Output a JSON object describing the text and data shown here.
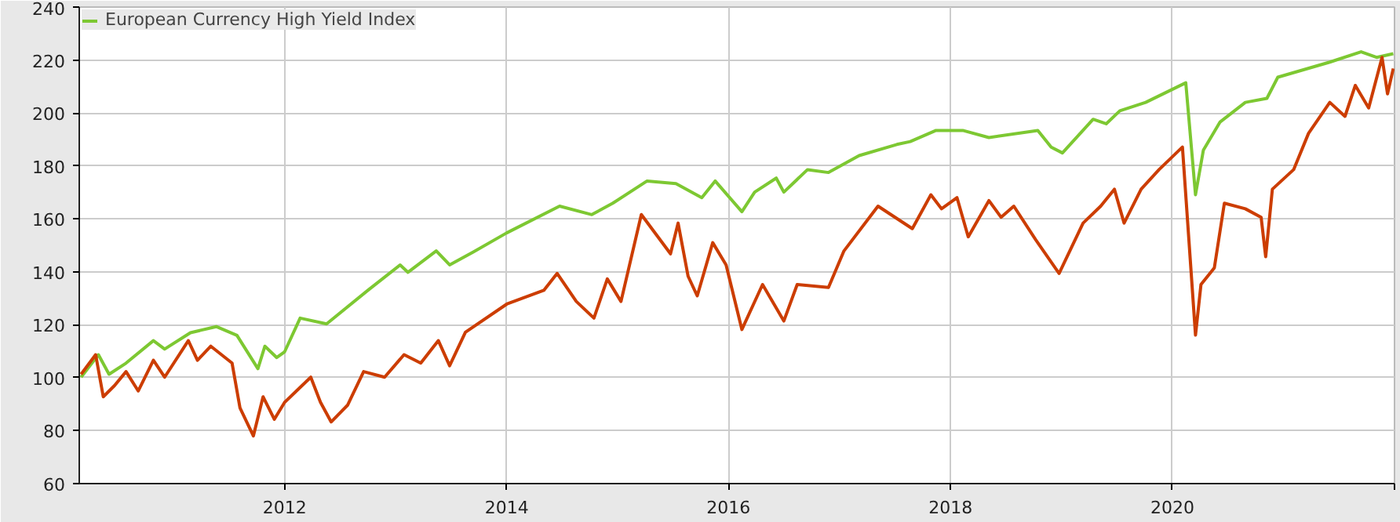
{
  "chart_data": {
    "type": "line",
    "xlim": [
      "2010-02-24",
      "2022-01-01"
    ],
    "xticks": [
      "2012",
      "2014",
      "2016",
      "2018",
      "2020",
      {
        "value": "2022",
        "label": null
      }
    ],
    "ylim": [
      60,
      240
    ],
    "yticks": [
      60,
      80,
      100,
      120,
      140,
      160,
      180,
      200,
      220,
      240
    ],
    "grid": true,
    "legend": "top left",
    "marker": "none",
    "line_style": "solid",
    "series": [
      {
        "name": "European Currency High Yield Index",
        "color": "#7dc832",
        "x": [
          "2010-03-02",
          "2010-04-28",
          "2010-06-02",
          "2010-07-28",
          "2010-10-26",
          "2010-12-02",
          "2011-02-25",
          "2011-05-21",
          "2011-07-28",
          "2011-10-05",
          "2011-10-28",
          "2011-12-06",
          "2012-01-01",
          "2012-02-21",
          "2012-05-18",
          "2012-10-01",
          "2013-01-15",
          "2013-02-10",
          "2013-05-14",
          "2013-06-27",
          "2013-09-13",
          "2014-01-01",
          "2014-06-24",
          "2014-10-08",
          "2014-12-16",
          "2015-04-08",
          "2015-07-12",
          "2015-10-05",
          "2015-11-18",
          "2016-02-14",
          "2016-03-27",
          "2016-06-06",
          "2016-07-01",
          "2016-09-17",
          "2016-11-25",
          "2017-03-06",
          "2017-07-08",
          "2017-08-21",
          "2017-11-14",
          "2018-02-10",
          "2018-05-07",
          "2018-10-15",
          "2018-11-28",
          "2019-01-04",
          "2019-04-15",
          "2019-05-28",
          "2019-07-12",
          "2019-10-05",
          "2020-02-14",
          "2020-03-17",
          "2020-04-12",
          "2020-06-06",
          "2020-08-28",
          "2020-11-07",
          "2020-12-13",
          "2021-06-02",
          "2021-09-13",
          "2021-11-03",
          "2021-12-28"
        ],
        "values": [
          100.2,
          108.7,
          101.3,
          105.5,
          114,
          110.8,
          117,
          119.3,
          116,
          103.4,
          111.9,
          107.6,
          109.8,
          122.5,
          120.3,
          133,
          142.6,
          139.8,
          147.9,
          142.6,
          147.5,
          154.7,
          164.8,
          161.6,
          165.9,
          174.3,
          173.3,
          168,
          174.3,
          162.7,
          170.1,
          175.4,
          170.1,
          178.6,
          177.5,
          183.9,
          188.1,
          189.2,
          193.4,
          193.4,
          190.7,
          193.4,
          187.1,
          184.9,
          197.6,
          195.9,
          200.8,
          204,
          211.4,
          169.1,
          186,
          196.6,
          204,
          205.5,
          213.5,
          219.2,
          223.1,
          221,
          222.4
        ]
      },
      {
        "color": "#cc3d00",
        "x": [
          "2010-03-02",
          "2010-04-19",
          "2010-05-14",
          "2010-06-20",
          "2010-07-28",
          "2010-09-06",
          "2010-10-26",
          "2010-12-02",
          "2011-02-18",
          "2011-03-20",
          "2011-05-03",
          "2011-07-12",
          "2011-08-07",
          "2011-09-20",
          "2011-10-22",
          "2011-11-28",
          "2012-01-01",
          "2012-03-27",
          "2012-04-28",
          "2012-06-02",
          "2012-07-26",
          "2012-09-17",
          "2012-11-25",
          "2013-01-28",
          "2013-03-24",
          "2013-05-21",
          "2013-06-27",
          "2013-08-18",
          "2014-01-01",
          "2014-05-03",
          "2014-06-16",
          "2014-08-18",
          "2014-10-15",
          "2014-11-28",
          "2015-01-12",
          "2015-03-20",
          "2015-06-24",
          "2015-07-19",
          "2015-08-21",
          "2015-09-20",
          "2015-11-10",
          "2015-12-24",
          "2016-02-14",
          "2016-04-22",
          "2016-07-01",
          "2016-08-14",
          "2016-11-25",
          "2017-01-15",
          "2017-05-07",
          "2017-08-28",
          "2017-10-28",
          "2017-12-02",
          "2018-01-22",
          "2018-02-28",
          "2018-05-07",
          "2018-06-16",
          "2018-07-28",
          "2018-10-08",
          "2018-12-24",
          "2019-03-13",
          "2019-05-10",
          "2019-06-24",
          "2019-07-26",
          "2019-09-20",
          "2019-11-18",
          "2020-02-03",
          "2020-03-17",
          "2020-04-04",
          "2020-05-18",
          "2020-06-20",
          "2020-08-28",
          "2020-10-19",
          "2020-11-03",
          "2020-11-25",
          "2021-02-03",
          "2021-03-24",
          "2021-06-02",
          "2021-07-22",
          "2021-08-25",
          "2021-10-08",
          "2021-11-21",
          "2021-12-09",
          "2021-12-28"
        ],
        "values": [
          101.3,
          108.7,
          92.8,
          97,
          102.3,
          95,
          106.6,
          100.2,
          114,
          106.6,
          111.9,
          105.5,
          88.6,
          78,
          92.8,
          84.3,
          90.7,
          100.2,
          90.7,
          83.3,
          89.6,
          102.3,
          100.2,
          108.7,
          105.5,
          114,
          104.5,
          117.2,
          127.8,
          133,
          139.4,
          128.8,
          122.5,
          137.3,
          128.8,
          161.6,
          146.8,
          158.4,
          138.3,
          130.9,
          151,
          142.6,
          118.2,
          135.2,
          121.4,
          135.2,
          134.1,
          147.9,
          164.8,
          156.3,
          169.1,
          163.8,
          168,
          153.2,
          166.9,
          160.6,
          164.8,
          152.1,
          139.4,
          158.4,
          164.8,
          171.2,
          158.4,
          171.2,
          178.6,
          187.1,
          116.1,
          135.2,
          141.5,
          165.9,
          163.8,
          160.6,
          145.7,
          171.2,
          178.6,
          192.3,
          204,
          198.7,
          210.4,
          201.9,
          221,
          207.2,
          216.8
        ]
      }
    ]
  }
}
